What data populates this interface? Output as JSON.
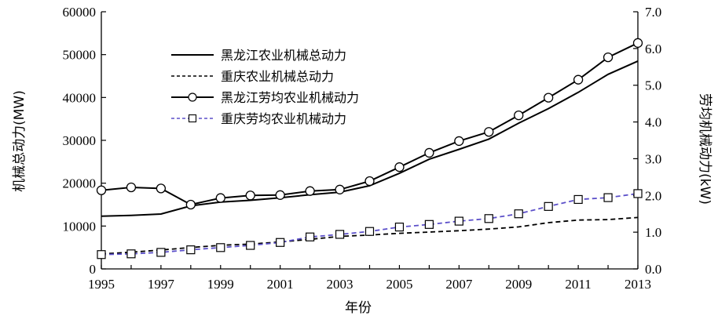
{
  "chart_data": {
    "type": "line",
    "xlabel": "年份",
    "ylabel_left": "机械总动力(MW)",
    "ylabel_right": "劳均机械动力(kW)",
    "x": [
      1995,
      1996,
      1997,
      1998,
      1999,
      2000,
      2001,
      2002,
      2003,
      2004,
      2005,
      2006,
      2007,
      2008,
      2009,
      2010,
      2011,
      2012,
      2013
    ],
    "xlim": [
      1995,
      2013
    ],
    "xticks": [
      "1995",
      "1997",
      "1999",
      "2001",
      "2003",
      "2005",
      "2007",
      "2009",
      "2011",
      "2013"
    ],
    "ylim_left": [
      0,
      60000
    ],
    "yticks_left": [
      "0",
      "10000",
      "20000",
      "30000",
      "40000",
      "50000",
      "60000"
    ],
    "ylim_right": [
      0,
      7.0
    ],
    "yticks_right": [
      "0.0",
      "1.0",
      "2.0",
      "3.0",
      "4.0",
      "5.0",
      "6.0",
      "7.0"
    ],
    "grid": false,
    "legend_position": "top-left",
    "series": [
      {
        "name": "黑龙江农业机械总动力",
        "axis": "left",
        "style": "solid",
        "color": "#000000",
        "marker": "none",
        "values": [
          12300,
          12500,
          12800,
          14700,
          15600,
          16000,
          16600,
          17300,
          17900,
          19400,
          22300,
          25600,
          27900,
          30300,
          34000,
          37400,
          41200,
          45400,
          48500
        ]
      },
      {
        "name": "重庆农业机械总动力",
        "axis": "left",
        "style": "dashed",
        "color": "#000000",
        "marker": "none",
        "values": [
          3500,
          3900,
          4400,
          5000,
          5500,
          5800,
          6300,
          6900,
          7600,
          7900,
          8300,
          8600,
          8900,
          9300,
          9800,
          10800,
          11400,
          11500,
          12000
        ]
      },
      {
        "name": "黑龙江劳均农业机械动力",
        "axis": "right",
        "style": "solid",
        "color": "#000000",
        "marker": "circle",
        "values": [
          2.14,
          2.22,
          2.19,
          1.75,
          1.93,
          2.0,
          2.01,
          2.12,
          2.16,
          2.39,
          2.77,
          3.16,
          3.48,
          3.73,
          4.18,
          4.66,
          5.15,
          5.76,
          6.15
        ]
      },
      {
        "name": "重庆劳均农业机械动力",
        "axis": "right",
        "style": "dashed",
        "color": "#5b4fc9",
        "marker": "square",
        "values": [
          0.39,
          0.41,
          0.45,
          0.52,
          0.58,
          0.64,
          0.72,
          0.87,
          0.94,
          1.02,
          1.14,
          1.21,
          1.3,
          1.37,
          1.5,
          1.7,
          1.89,
          1.94,
          2.05
        ]
      }
    ]
  }
}
